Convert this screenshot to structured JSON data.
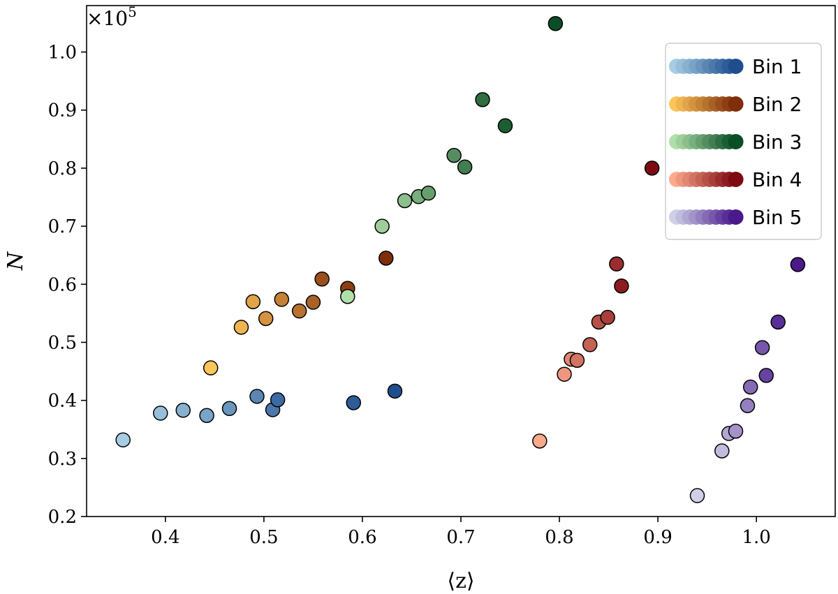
{
  "chart_data": {
    "type": "scatter",
    "title": "",
    "xlabel": "⟨z⟩",
    "ylabel": "N",
    "y_multiplier": "×10",
    "y_multiplier_exp": "5",
    "xlim": [
      0.32,
      1.08
    ],
    "ylim": [
      0.2,
      1.08
    ],
    "xticks": [
      0.4,
      0.5,
      0.6,
      0.7,
      0.8,
      0.9,
      1.0
    ],
    "xtick_labels": [
      "0.4",
      "0.5",
      "0.6",
      "0.7",
      "0.8",
      "0.9",
      "1.0"
    ],
    "yticks": [
      0.2,
      0.3,
      0.4,
      0.5,
      0.6,
      0.7,
      0.8,
      0.9,
      1.0
    ],
    "ytick_labels": [
      "0.2",
      "0.3",
      "0.4",
      "0.5",
      "0.6",
      "0.7",
      "0.8",
      "0.9",
      "1.0"
    ],
    "grid": false,
    "legend_position": "top-right",
    "series": [
      {
        "name": "Bin 1",
        "colors": [
          "#a6cde3",
          "#1f4e8f"
        ],
        "points": [
          [
            0.357,
            0.332
          ],
          [
            0.395,
            0.378
          ],
          [
            0.418,
            0.383
          ],
          [
            0.442,
            0.374
          ],
          [
            0.465,
            0.386
          ],
          [
            0.493,
            0.407
          ],
          [
            0.509,
            0.384
          ],
          [
            0.514,
            0.401
          ],
          [
            0.591,
            0.396
          ],
          [
            0.633,
            0.416
          ]
        ]
      },
      {
        "name": "Bin 2",
        "colors": [
          "#fdc65a",
          "#7f2e0a"
        ],
        "points": [
          [
            0.446,
            0.456
          ],
          [
            0.477,
            0.526
          ],
          [
            0.489,
            0.57
          ],
          [
            0.502,
            0.541
          ],
          [
            0.518,
            0.574
          ],
          [
            0.536,
            0.554
          ],
          [
            0.55,
            0.569
          ],
          [
            0.559,
            0.609
          ],
          [
            0.585,
            0.593
          ],
          [
            0.624,
            0.645
          ]
        ]
      },
      {
        "name": "Bin 3",
        "colors": [
          "#b0dfaa",
          "#0a4e25"
        ],
        "points": [
          [
            0.585,
            0.579
          ],
          [
            0.62,
            0.7
          ],
          [
            0.643,
            0.744
          ],
          [
            0.657,
            0.751
          ],
          [
            0.667,
            0.757
          ],
          [
            0.693,
            0.822
          ],
          [
            0.704,
            0.802
          ],
          [
            0.722,
            0.918
          ],
          [
            0.745,
            0.873
          ],
          [
            0.796,
            1.049
          ]
        ]
      },
      {
        "name": "Bin 4",
        "colors": [
          "#fca98c",
          "#7e0a12"
        ],
        "points": [
          [
            0.78,
            0.33
          ],
          [
            0.805,
            0.445
          ],
          [
            0.812,
            0.471
          ],
          [
            0.818,
            0.469
          ],
          [
            0.831,
            0.496
          ],
          [
            0.84,
            0.535
          ],
          [
            0.849,
            0.543
          ],
          [
            0.858,
            0.635
          ],
          [
            0.863,
            0.597
          ],
          [
            0.894,
            0.8
          ]
        ]
      },
      {
        "name": "Bin 5",
        "colors": [
          "#cfd0e7",
          "#4a1a8c"
        ],
        "points": [
          [
            0.94,
            0.236
          ],
          [
            0.965,
            0.313
          ],
          [
            0.972,
            0.343
          ],
          [
            0.979,
            0.347
          ],
          [
            0.991,
            0.391
          ],
          [
            0.994,
            0.423
          ],
          [
            1.006,
            0.491
          ],
          [
            1.01,
            0.443
          ],
          [
            1.022,
            0.535
          ],
          [
            1.042,
            0.634
          ]
        ]
      }
    ]
  }
}
